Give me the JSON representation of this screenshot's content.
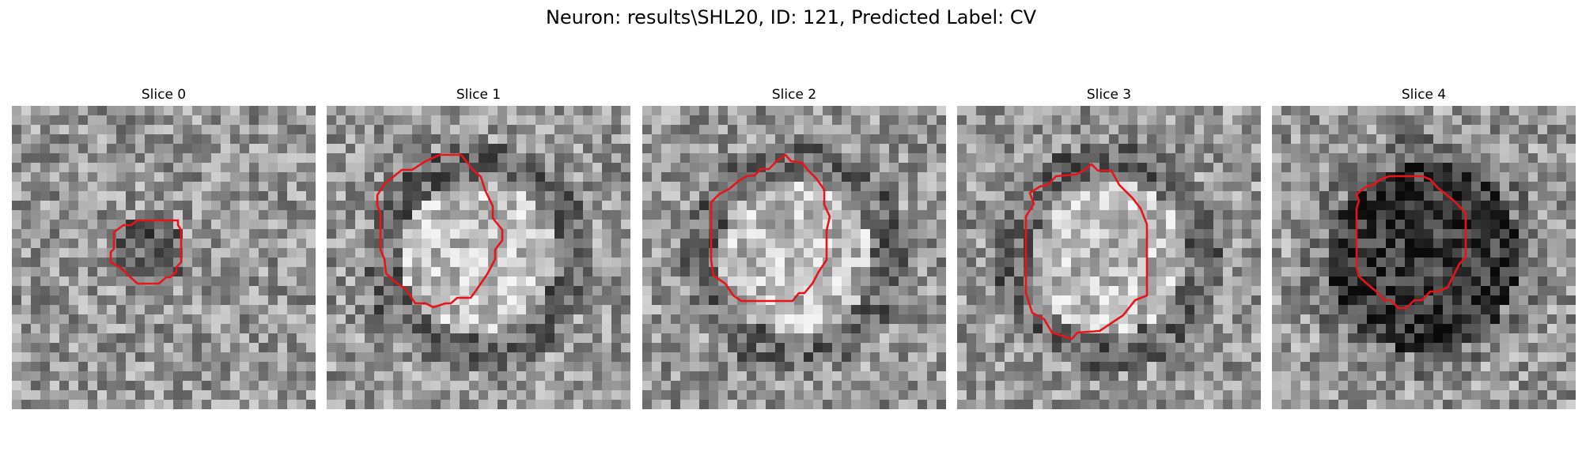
{
  "figure": {
    "title": "Neuron: results\\SHL20, ID: 121, Predicted Label: CV",
    "contour_color": "#e8141c"
  },
  "panels": [
    {
      "title": "Slice 0",
      "pattern": "small-dark-blob"
    },
    {
      "title": "Slice 1",
      "pattern": "bright-center-dark-ring"
    },
    {
      "title": "Slice 2",
      "pattern": "bright-center-dark-ring"
    },
    {
      "title": "Slice 3",
      "pattern": "bright-center-dark-ring"
    },
    {
      "title": "Slice 4",
      "pattern": "dark-center"
    }
  ]
}
